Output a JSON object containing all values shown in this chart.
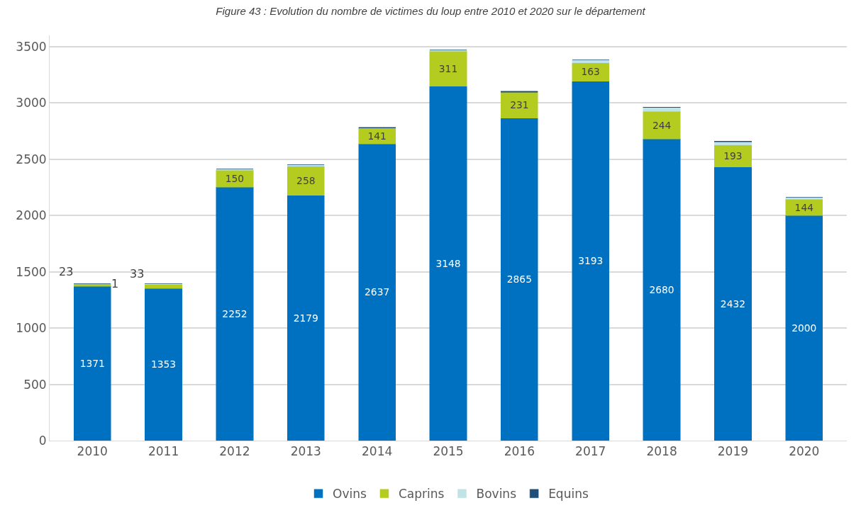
{
  "chart_data": {
    "type": "bar",
    "stacked": true,
    "title": "Figure 43 : Evolution du nombre de victimes du loup entre 2010 et 2020 sur le département",
    "categories": [
      "2010",
      "2011",
      "2012",
      "2013",
      "2014",
      "2015",
      "2016",
      "2017",
      "2018",
      "2019",
      "2020"
    ],
    "series": [
      {
        "name": "Ovins",
        "color": "#0070c0",
        "values": [
          1371,
          1353,
          2252,
          2179,
          2637,
          3148,
          2865,
          3193,
          2680,
          2432,
          2000
        ],
        "value_labels": [
          "1371",
          "1353",
          "2252",
          "2179",
          "2637",
          "3148",
          "2865",
          "3193",
          "2680",
          "2432",
          "2000"
        ]
      },
      {
        "name": "Caprins",
        "color": "#b4cc1f",
        "values": [
          23,
          33,
          150,
          258,
          141,
          311,
          231,
          163,
          244,
          193,
          144
        ],
        "value_labels": [
          "23",
          "33",
          "150",
          "258",
          "141",
          "311",
          "231",
          "163",
          "244",
          "193",
          "144"
        ]
      },
      {
        "name": "Bovins",
        "color": "#c0e4e6",
        "values": [
          1,
          5,
          10,
          15,
          null,
          15,
          null,
          25,
          35,
          30,
          15
        ],
        "value_labels": [
          "1",
          null,
          null,
          null,
          null,
          null,
          null,
          null,
          null,
          null,
          null
        ]
      },
      {
        "name": "Equins",
        "color": "#1f4e79",
        "values": [
          0,
          3,
          0,
          0,
          5,
          0,
          8,
          0,
          5,
          5,
          0
        ]
      }
    ],
    "ylim": [
      0,
      3600
    ],
    "yticks": [
      0,
      500,
      1000,
      1500,
      2000,
      2500,
      3000,
      3500
    ],
    "grid": "y",
    "legend": "bottom"
  }
}
